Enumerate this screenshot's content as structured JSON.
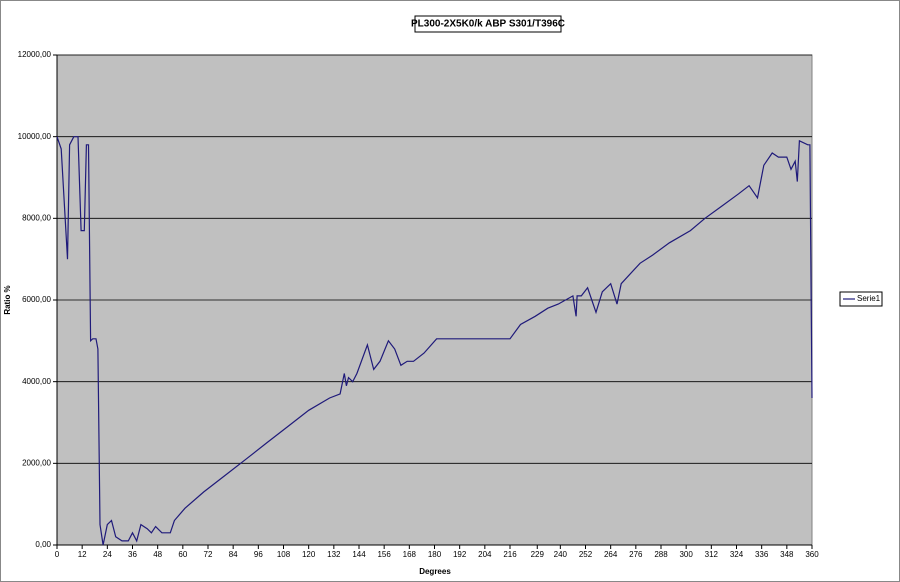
{
  "chart_data": {
    "type": "line",
    "title": "PL300-2X5K0/k ABP S301/T396C",
    "x_label": "Degrees",
    "y_label": "Ratio %",
    "x": [
      0,
      2,
      5,
      6,
      8,
      10,
      11.5,
      13,
      14,
      15,
      16,
      17,
      18.6,
      19.5,
      20.5,
      22,
      24,
      26,
      28,
      31,
      34,
      36,
      38,
      40,
      43,
      45,
      47,
      50,
      54,
      56,
      61,
      70,
      80,
      90,
      100,
      110,
      120,
      130,
      135,
      137,
      138,
      139,
      141,
      143,
      148,
      151,
      154,
      158,
      161,
      164,
      167,
      170,
      175,
      181,
      195,
      216,
      221,
      228,
      234,
      239,
      246,
      247.5,
      248,
      250,
      253,
      257,
      260,
      264,
      267,
      269,
      278,
      284,
      292,
      302,
      309,
      317,
      325,
      330,
      334,
      337,
      341,
      344,
      348,
      350,
      352,
      353,
      354,
      358,
      359,
      360
    ],
    "series": [
      {
        "name": "Serie1",
        "color": "#1f1a7a",
        "values": [
          10000,
          9700,
          7000,
          9800,
          10000,
          10000,
          7700,
          7700,
          9800,
          9800,
          5000,
          5050,
          5050,
          4800,
          500,
          0,
          500,
          600,
          200,
          100,
          100,
          300,
          100,
          500,
          400,
          300,
          450,
          300,
          300,
          600,
          900,
          1300,
          1700,
          2100,
          2500,
          2900,
          3300,
          3600,
          3700,
          4200,
          3900,
          4100,
          4000,
          4200,
          4900,
          4300,
          4500,
          5000,
          4800,
          4400,
          4500,
          4500,
          4700,
          5050,
          5050,
          5050,
          5400,
          5600,
          5800,
          5900,
          6100,
          5600,
          6100,
          6100,
          6300,
          5700,
          6200,
          6400,
          5900,
          6400,
          6900,
          7100,
          7400,
          7700,
          8000,
          8300,
          8600,
          8800,
          8500,
          9300,
          9600,
          9500,
          9500,
          9200,
          9400,
          8900,
          9900,
          9800,
          9800,
          3600
        ]
      }
    ],
    "xlim": [
      0,
      360
    ],
    "ylim": [
      0,
      12000
    ],
    "xticks": [
      0,
      12,
      24,
      36,
      48,
      60,
      72,
      84,
      96,
      108,
      120,
      132,
      144,
      156,
      168,
      180,
      192,
      204,
      216,
      229,
      240,
      252,
      264,
      276,
      288,
      300,
      312,
      324,
      336,
      348,
      360
    ],
    "yticks": [
      {
        "value": 0,
        "label": "0,00"
      },
      {
        "value": 2000,
        "label": "2000,00"
      },
      {
        "value": 4000,
        "label": "4000,00"
      },
      {
        "value": 6000,
        "label": "6000,00"
      },
      {
        "value": 8000,
        "label": "8000,00"
      },
      {
        "value": 10000,
        "label": "10000,00"
      },
      {
        "value": 12000,
        "label": "12000,00"
      }
    ],
    "grid": true,
    "legend": "right",
    "plot_background": "#c0c0c0"
  }
}
